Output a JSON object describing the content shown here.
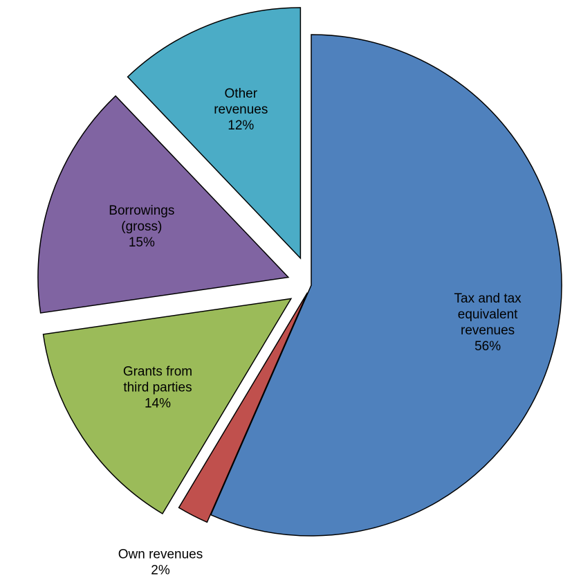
{
  "chart_data": {
    "type": "pie",
    "exploded": true,
    "start_angle_deg": 0,
    "direction": "clockwise",
    "slices": [
      {
        "label": "Tax and tax equivalent revenues",
        "label_lines": [
          "Tax and tax",
          "equivalent",
          "revenues"
        ],
        "value": 56,
        "value_label": "56%",
        "color": "#4F81BD",
        "label_position": "inside"
      },
      {
        "label": "Own revenues",
        "label_lines": [
          "Own revenues"
        ],
        "value": 2,
        "value_label": "2%",
        "color": "#C0504D",
        "label_position": "outside"
      },
      {
        "label": "Grants from third parties",
        "label_lines": [
          "Grants from",
          "third parties"
        ],
        "value": 14,
        "value_label": "14%",
        "color": "#9BBB59",
        "label_position": "inside"
      },
      {
        "label": "Borrowings (gross)",
        "label_lines": [
          "Borrowings",
          "(gross)"
        ],
        "value": 15,
        "value_label": "15%",
        "color": "#8064A2",
        "label_position": "inside"
      },
      {
        "label": "Other revenues",
        "label_lines": [
          "Other",
          "revenues"
        ],
        "value": 12,
        "value_label": "12%",
        "color": "#4BACC6",
        "label_position": "inside"
      }
    ]
  }
}
